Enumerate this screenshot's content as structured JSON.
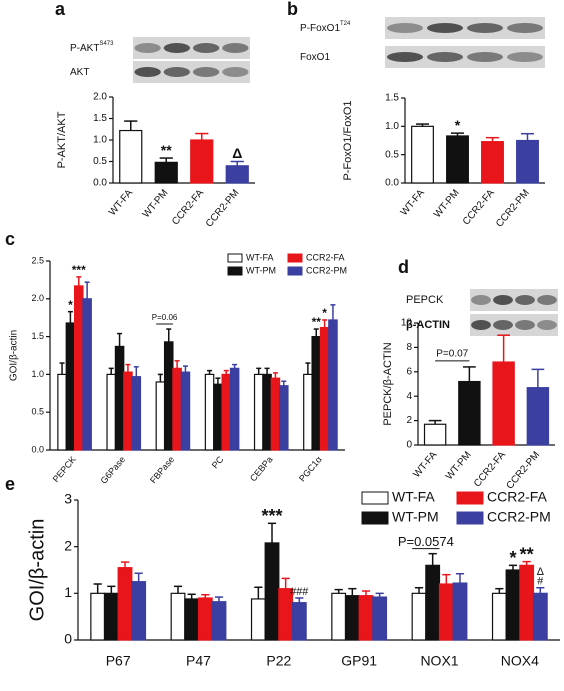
{
  "chart_data": [
    {
      "type": "bar",
      "panel": "a",
      "ylabel": "P-AKT/AKT",
      "blots": [
        {
          "label": "P-AKT",
          "sup": "S473"
        },
        {
          "label": "AKT"
        }
      ],
      "categories": [
        "WT-FA",
        "WT-PM",
        "CCR2-FA",
        "CCR2-PM"
      ],
      "values": [
        1.22,
        0.48,
        1.0,
        0.4
      ],
      "errors": [
        0.22,
        0.1,
        0.15,
        0.1
      ],
      "colors": [
        "#ffffff",
        "#111111",
        "#e8151b",
        "#3a3fa0"
      ],
      "ylim": [
        0,
        2.0
      ],
      "yticks": [
        {
          "value": 0,
          "label": "0.0"
        },
        {
          "value": 0.5,
          "label": "0.5"
        },
        {
          "value": 1,
          "label": "1.0"
        },
        {
          "value": 1.5,
          "label": "1.5"
        },
        {
          "value": 2,
          "label": "2.0"
        }
      ],
      "annotations": [
        {
          "text": "**",
          "index": 1
        },
        {
          "text": "Δ",
          "index": 3
        }
      ]
    },
    {
      "type": "bar",
      "panel": "b",
      "ylabel": "P-FoxO1/FoxO1",
      "blots": [
        {
          "label": "P-FoxO1",
          "sup": "T24"
        },
        {
          "label": "FoxO1"
        }
      ],
      "categories": [
        "WT-FA",
        "WT-PM",
        "CCR2-FA",
        "CCR2-PM"
      ],
      "values": [
        1.0,
        0.83,
        0.73,
        0.75
      ],
      "errors": [
        0.04,
        0.05,
        0.07,
        0.12
      ],
      "colors": [
        "#ffffff",
        "#111111",
        "#e8151b",
        "#3a3fa0"
      ],
      "ylim": [
        0,
        1.5
      ],
      "yticks": [
        {
          "value": 0,
          "label": "0.0"
        },
        {
          "value": 0.5,
          "label": "0.5"
        },
        {
          "value": 1,
          "label": "1.0"
        },
        {
          "value": 1.5,
          "label": "1.5"
        }
      ],
      "annotations": [
        {
          "text": "*",
          "index": 1
        }
      ]
    },
    {
      "type": "grouped-bar",
      "panel": "c",
      "ylabel": "GOI/β-actin",
      "categories": [
        "PEPCK",
        "G6Pase",
        "FBPase",
        "PC",
        "CEBPa",
        "PGC1α"
      ],
      "series": [
        {
          "name": "WT-FA",
          "color": "#ffffff",
          "values": [
            1.0,
            1.0,
            0.9,
            1.0,
            1.0,
            1.0
          ],
          "errors": [
            0.15,
            0.08,
            0.1,
            0.05,
            0.08,
            0.15
          ]
        },
        {
          "name": "WT-PM",
          "color": "#111111",
          "values": [
            1.68,
            1.37,
            1.43,
            0.87,
            1.0,
            1.5
          ],
          "errors": [
            0.15,
            0.17,
            0.17,
            0.08,
            0.08,
            0.1
          ]
        },
        {
          "name": "CCR2-FA",
          "color": "#e8151b",
          "values": [
            2.17,
            1.03,
            1.08,
            1.0,
            0.95,
            1.62
          ],
          "errors": [
            0.12,
            0.1,
            0.1,
            0.05,
            0.07,
            0.1
          ]
        },
        {
          "name": "CCR2-PM",
          "color": "#3a3fa0",
          "values": [
            2.0,
            0.97,
            1.03,
            1.08,
            0.85,
            1.72
          ],
          "errors": [
            0.22,
            0.13,
            0.08,
            0.05,
            0.06,
            0.2
          ]
        }
      ],
      "ylim": [
        0,
        2.5
      ],
      "yticks": [
        {
          "value": 0,
          "label": "0.0"
        },
        {
          "value": 0.5,
          "label": "0.5"
        },
        {
          "value": 1,
          "label": "1.0"
        },
        {
          "value": 1.5,
          "label": "1.5"
        },
        {
          "value": 2,
          "label": "2.0"
        },
        {
          "value": 2.5,
          "label": "2.5"
        }
      ],
      "annotations": [
        {
          "text": "*",
          "category": 0,
          "series": 1
        },
        {
          "text": "***",
          "category": 0,
          "series": 2
        },
        {
          "text": "P=0.06",
          "category": 2,
          "series": 1,
          "bracket": true
        },
        {
          "text": "**",
          "category": 5,
          "series": 1
        },
        {
          "text": "*",
          "category": 5,
          "series": 2
        }
      ]
    },
    {
      "type": "bar",
      "panel": "d",
      "ylabel": "PEPCK/β-ACTIN",
      "blots": [
        {
          "label": "PEPCK"
        },
        {
          "label": "β-ACTIN"
        }
      ],
      "categories": [
        "WT-FA",
        "WT-PM",
        "CCR2-FA",
        "CCR2-PM"
      ],
      "values": [
        1.7,
        5.2,
        6.8,
        4.7
      ],
      "errors": [
        0.3,
        1.2,
        2.2,
        1.5
      ],
      "colors": [
        "#ffffff",
        "#111111",
        "#e8151b",
        "#3a3fa0"
      ],
      "ylim": [
        0,
        10
      ],
      "yticks": [
        0,
        2,
        4,
        6,
        8,
        10
      ],
      "annotations": [
        {
          "text": "P=0.07",
          "index": 1,
          "bracket": true
        }
      ]
    },
    {
      "type": "grouped-bar",
      "panel": "e",
      "ylabel": "GOI/β-actin",
      "categories": [
        "P67",
        "P47",
        "P22",
        "GP91",
        "NOX1",
        "NOX4"
      ],
      "series": [
        {
          "name": "WT-FA",
          "color": "#ffffff",
          "values": [
            1.0,
            1.0,
            0.88,
            1.0,
            1.0,
            1.0
          ],
          "errors": [
            0.2,
            0.15,
            0.25,
            0.08,
            0.12,
            0.1
          ]
        },
        {
          "name": "WT-PM",
          "color": "#111111",
          "values": [
            1.0,
            0.88,
            2.08,
            0.95,
            1.6,
            1.5
          ],
          "errors": [
            0.15,
            0.1,
            0.42,
            0.15,
            0.25,
            0.1
          ]
        },
        {
          "name": "CCR2-FA",
          "color": "#e8151b",
          "values": [
            1.55,
            0.9,
            1.1,
            0.95,
            1.2,
            1.6
          ],
          "errors": [
            0.12,
            0.07,
            0.22,
            0.1,
            0.2,
            0.08
          ]
        },
        {
          "name": "CCR2-PM",
          "color": "#3a3fa0",
          "values": [
            1.25,
            0.82,
            0.8,
            0.92,
            1.22,
            1.0
          ],
          "errors": [
            0.18,
            0.1,
            0.1,
            0.08,
            0.2,
            0.12
          ]
        }
      ],
      "ylim": [
        0,
        3
      ],
      "yticks": [
        0,
        1,
        2,
        3
      ],
      "annotations": [
        {
          "text": "***",
          "category": 2,
          "series": 1
        },
        {
          "text": "###",
          "category": 2,
          "series": 3
        },
        {
          "text": "P=0.0574",
          "category": 4,
          "series": 1,
          "bracket": true
        },
        {
          "text": "*",
          "category": 5,
          "series": 1
        },
        {
          "text": "**",
          "category": 5,
          "series": 2
        },
        {
          "text": "#",
          "category": 5,
          "series": 3
        },
        {
          "text": "Δ",
          "category": 5,
          "series": 3,
          "stack": true
        }
      ]
    }
  ]
}
